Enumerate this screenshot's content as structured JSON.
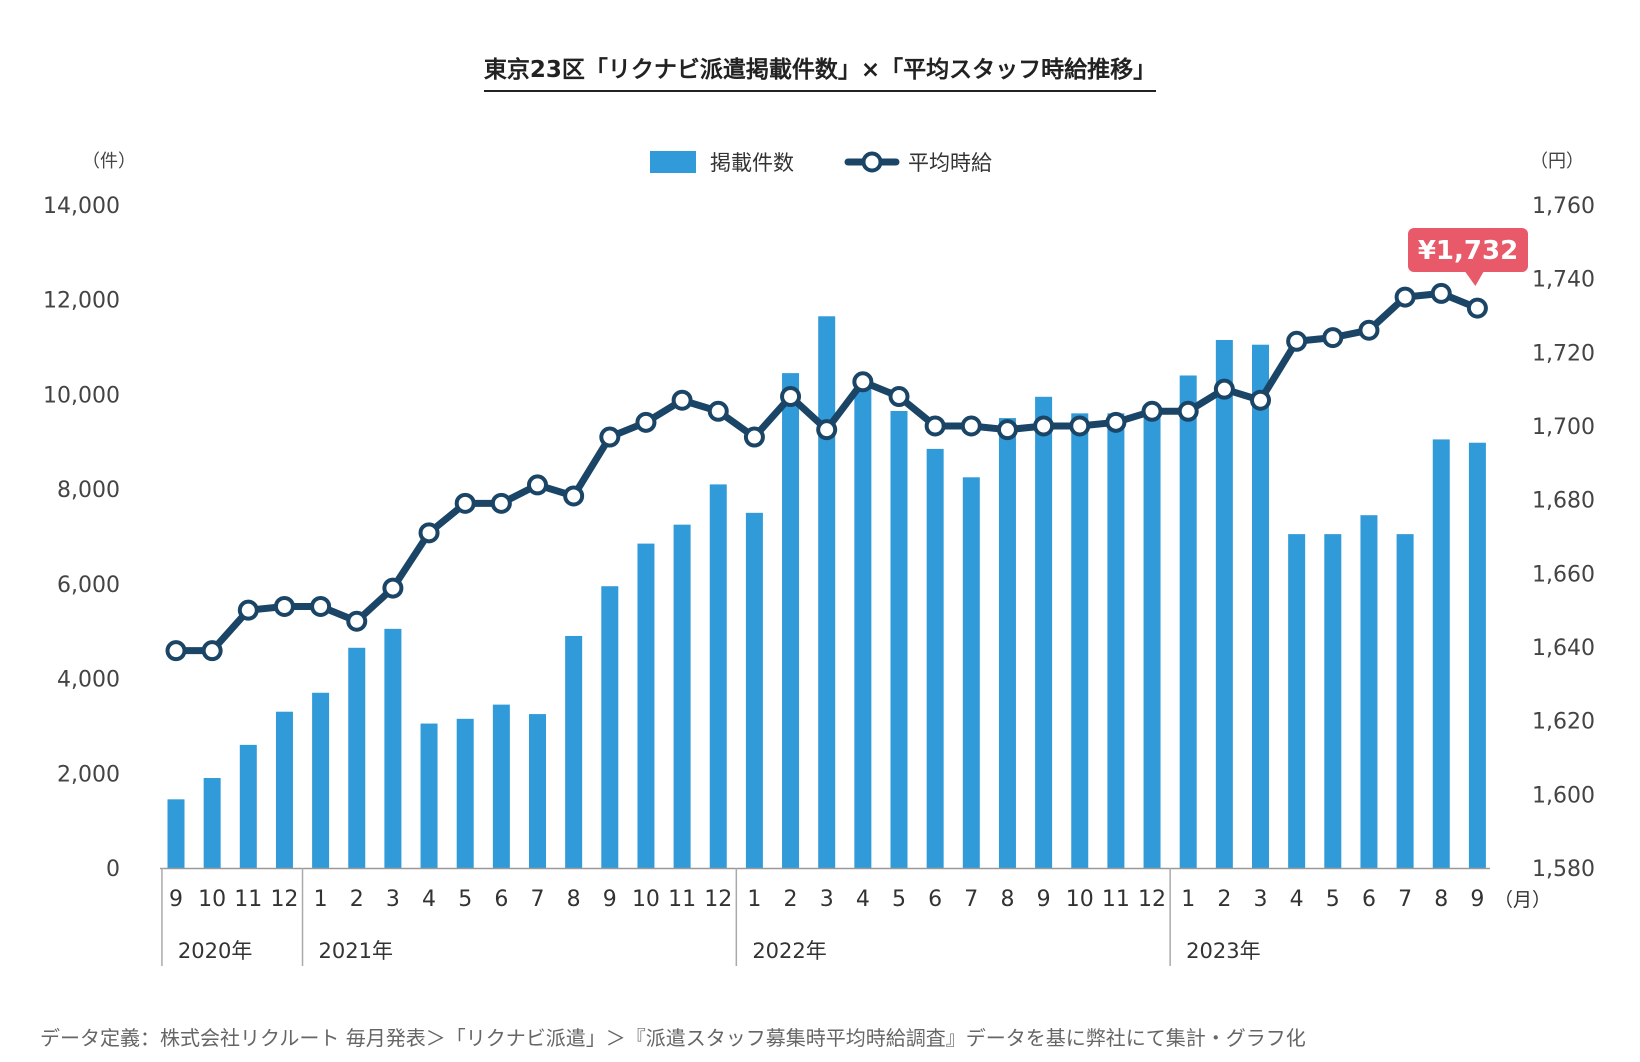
{
  "chart_data": {
    "type": "bar+line",
    "title": "東京23区「リクナビ派遣掲載件数」×「平均スタッフ時給推移」",
    "left_axis": {
      "unit": "（件）",
      "range": [
        0,
        14000
      ],
      "ticks": [
        "0",
        "2,000",
        "4,000",
        "6,000",
        "8,000",
        "10,000",
        "12,000",
        "14,000"
      ]
    },
    "right_axis": {
      "unit": "（円）",
      "range": [
        1580,
        1760
      ],
      "ticks": [
        "1,580",
        "1,600",
        "1,620",
        "1,640",
        "1,660",
        "1,680",
        "1,700",
        "1,720",
        "1,740",
        "1,760"
      ]
    },
    "x_unit": "（月）",
    "legend": {
      "bar": "掲載件数",
      "line": "平均時給",
      "placement": "top-center"
    },
    "categories": [
      "9",
      "10",
      "11",
      "12",
      "1",
      "2",
      "3",
      "4",
      "5",
      "6",
      "7",
      "8",
      "9",
      "10",
      "11",
      "12",
      "1",
      "2",
      "3",
      "4",
      "5",
      "6",
      "7",
      "8",
      "9",
      "10",
      "11",
      "12",
      "1",
      "2",
      "3",
      "4",
      "5",
      "6",
      "7",
      "8",
      "9"
    ],
    "years": [
      {
        "label": "2020年",
        "start_index": 0
      },
      {
        "label": "2021年",
        "start_index": 4
      },
      {
        "label": "2022年",
        "start_index": 16
      },
      {
        "label": "2023年",
        "start_index": 28
      }
    ],
    "series": [
      {
        "name": "掲載件数",
        "type": "bar",
        "axis": "left",
        "color": "#319ad8",
        "values": [
          1450,
          1900,
          2600,
          3300,
          3700,
          4650,
          5050,
          3050,
          3150,
          3450,
          3250,
          4900,
          5950,
          6850,
          7250,
          8100,
          7500,
          10450,
          11650,
          10150,
          9650,
          8850,
          8250,
          9500,
          9950,
          9600,
          9600,
          9750,
          10400,
          11150,
          11050,
          7050,
          7050,
          7450,
          7050,
          9050,
          8980
        ]
      },
      {
        "name": "平均時給",
        "type": "line",
        "axis": "right",
        "color": "#1a4566",
        "values": [
          1639,
          1639,
          1650,
          1651,
          1651,
          1647,
          1656,
          1671,
          1679,
          1679,
          1684,
          1681,
          1697,
          1701,
          1707,
          1704,
          1697,
          1708,
          1699,
          1712,
          1708,
          1700,
          1700,
          1699,
          1700,
          1700,
          1701,
          1704,
          1704,
          1710,
          1707,
          1723,
          1724,
          1726,
          1735,
          1736,
          1732
        ]
      }
    ],
    "annotation": {
      "text": "¥1,732",
      "index": 36,
      "color": "#e8596a"
    },
    "grid": false
  },
  "footnote": "データ定義：株式会社リクルート 毎月発表＞「リクナビ派遣」＞『派遣スタッフ募集時平均時給調査』データを基に弊社にて集計・グラフ化"
}
